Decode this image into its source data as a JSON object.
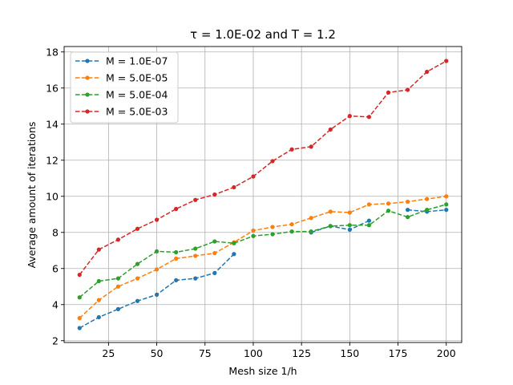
{
  "chart_data": {
    "type": "line",
    "title": "τ = 1.0E-02 and T = 1.2",
    "xlabel": "Mesh size 1/h",
    "ylabel": "Average amount of iterations",
    "xlim": [
      2,
      208
    ],
    "ylim": [
      1.9,
      18.3
    ],
    "xticks": [
      25,
      50,
      75,
      100,
      125,
      150,
      175,
      200
    ],
    "yticks": [
      2,
      4,
      6,
      8,
      10,
      12,
      14,
      16,
      18
    ],
    "grid": true,
    "legend_position": "top-left",
    "series": [
      {
        "name": "M = 1.0E-07",
        "color": "#1f77b4",
        "segments": [
          {
            "x": [
              10,
              20,
              30,
              40,
              50,
              60,
              70,
              80,
              90
            ],
            "y": [
              2.7,
              3.3,
              3.75,
              4.2,
              4.55,
              5.35,
              5.45,
              5.75,
              6.8
            ]
          },
          {
            "x": [
              130,
              140,
              150,
              160
            ],
            "y": [
              8.0,
              8.35,
              8.15,
              8.65
            ]
          },
          {
            "x": [
              180,
              190,
              200
            ],
            "y": [
              9.25,
              9.15,
              9.25
            ]
          }
        ]
      },
      {
        "name": "M = 5.0E-05",
        "color": "#ff7f0e",
        "segments": [
          {
            "x": [
              10,
              20,
              30,
              40,
              50,
              60,
              70,
              80,
              90,
              100,
              110,
              120,
              130,
              140,
              150,
              160,
              170,
              180,
              190,
              200
            ],
            "y": [
              3.25,
              4.25,
              5.0,
              5.45,
              5.95,
              6.55,
              6.7,
              6.85,
              7.45,
              8.1,
              8.3,
              8.45,
              8.8,
              9.15,
              9.1,
              9.55,
              9.6,
              9.7,
              9.85,
              10.0
            ]
          }
        ]
      },
      {
        "name": "M = 5.0E-04",
        "color": "#2ca02c",
        "segments": [
          {
            "x": [
              10,
              20,
              30,
              40,
              50,
              60,
              70,
              80,
              90,
              100,
              110,
              120,
              130,
              140,
              150,
              160,
              170,
              180,
              190,
              200
            ],
            "y": [
              4.4,
              5.3,
              5.45,
              6.25,
              6.95,
              6.9,
              7.1,
              7.5,
              7.4,
              7.8,
              7.9,
              8.05,
              8.05,
              8.35,
              8.4,
              8.4,
              9.2,
              8.85,
              9.25,
              9.55
            ]
          }
        ]
      },
      {
        "name": "M = 5.0E-03",
        "color": "#d62728",
        "segments": [
          {
            "x": [
              10,
              20,
              30,
              40,
              50,
              60,
              70,
              80,
              90,
              100,
              110,
              120,
              130,
              140,
              150,
              160,
              170,
              180,
              190,
              200
            ],
            "y": [
              5.65,
              7.05,
              7.6,
              8.2,
              8.7,
              9.3,
              9.8,
              10.1,
              10.5,
              11.1,
              11.95,
              12.6,
              12.75,
              13.7,
              14.45,
              14.4,
              15.75,
              15.9,
              16.9,
              17.5
            ]
          }
        ]
      }
    ]
  }
}
